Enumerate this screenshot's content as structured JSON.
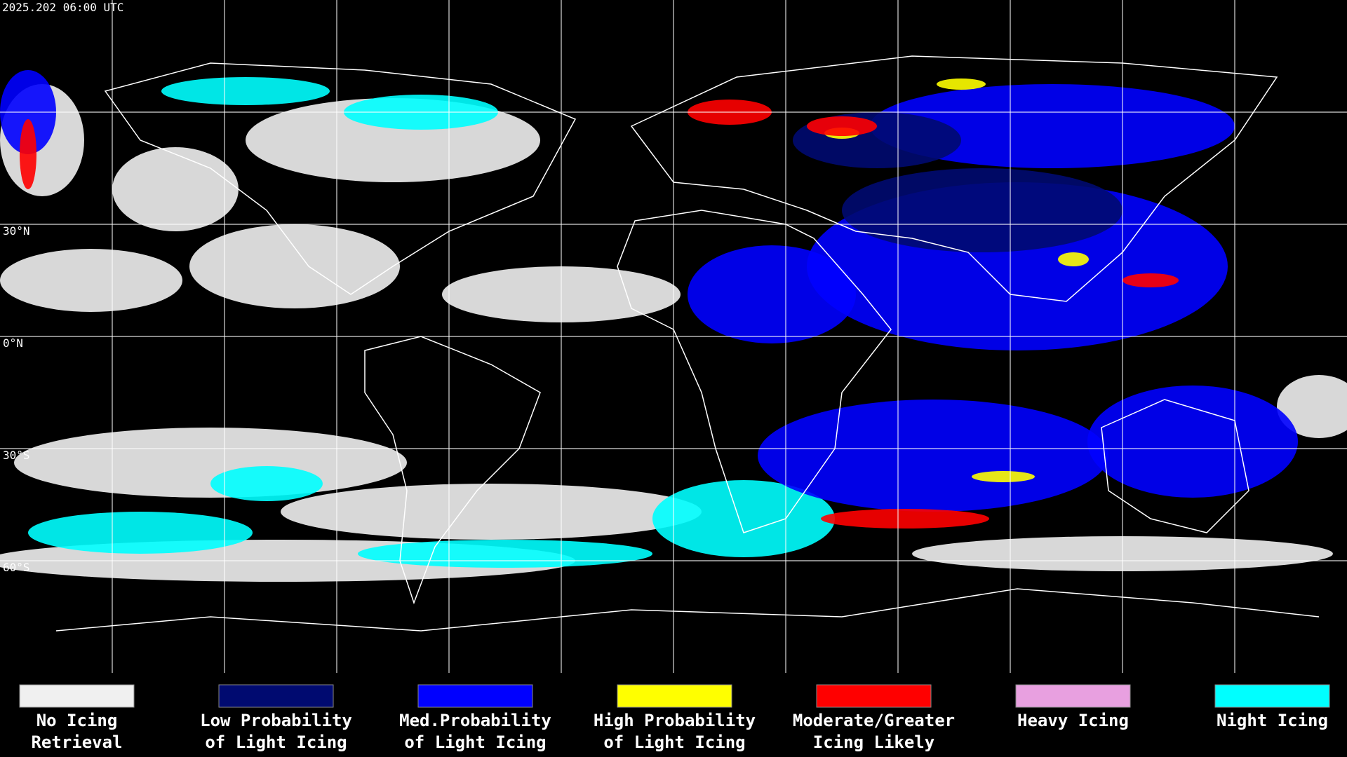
{
  "header": {
    "timestamp": "2025.202 06:00 UTC"
  },
  "map": {
    "latitude_labels": [
      "30°N",
      "0°N",
      "30°S",
      "60°S"
    ]
  },
  "legend": {
    "items": [
      {
        "color": "#f0f0f0",
        "label_lines": [
          "No Icing",
          "Retrieval"
        ]
      },
      {
        "color": "#000a70",
        "label_lines": [
          "Low Probability",
          "of Light Icing"
        ]
      },
      {
        "color": "#0000ff",
        "label_lines": [
          "Med.Probability",
          "of Light Icing"
        ]
      },
      {
        "color": "#ffff00",
        "label_lines": [
          "High Probability",
          "of Light Icing"
        ]
      },
      {
        "color": "#ff0000",
        "label_lines": [
          "Moderate/Greater",
          "Icing Likely"
        ]
      },
      {
        "color": "#e8a0e0",
        "label_lines": [
          "Heavy Icing"
        ]
      },
      {
        "color": "#00ffff",
        "label_lines": [
          "Night Icing"
        ]
      }
    ]
  }
}
